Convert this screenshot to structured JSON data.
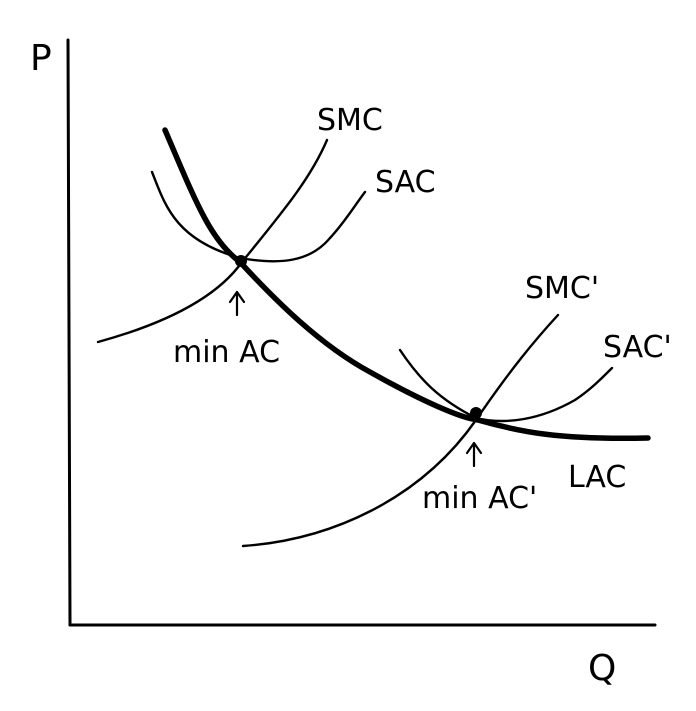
{
  "axes": {
    "y_label": "P",
    "x_label": "Q"
  },
  "curves": {
    "smc_1": "SMC",
    "sac_1": "SAC",
    "smc_2": "SMC'",
    "sac_2": "SAC'",
    "lac": "LAC"
  },
  "points": {
    "min_ac_1": "min AC",
    "min_ac_2": "min AC'"
  }
}
